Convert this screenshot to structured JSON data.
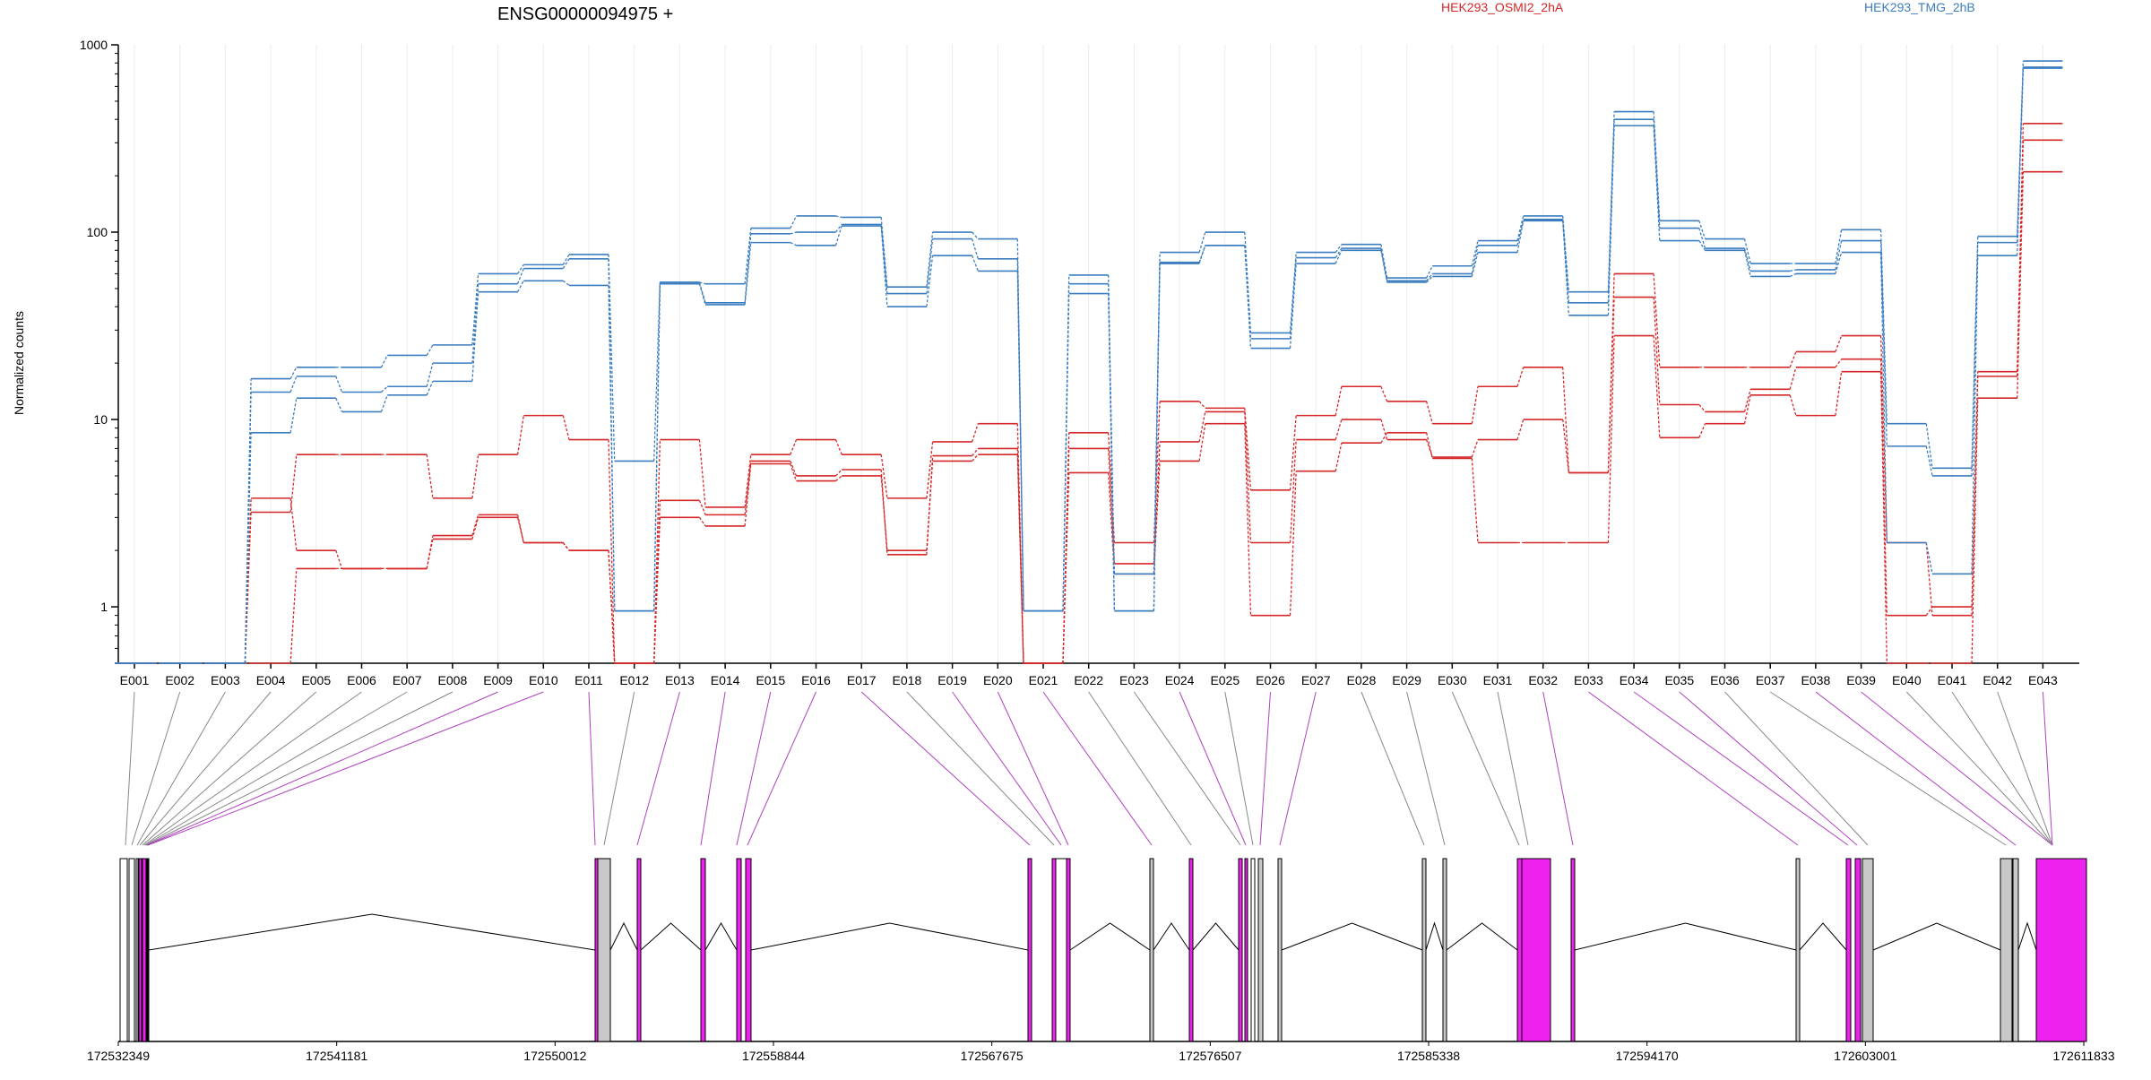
{
  "chart_data": {
    "type": "line",
    "title": "ENSG00000094975 +",
    "ylabel": "Normalized counts",
    "yscale": "log",
    "ylim": [
      0.5,
      1000
    ],
    "y_ticks": [
      "1",
      "10",
      "100",
      "1000"
    ],
    "grid": "vertical",
    "legend_placement": "top-right",
    "categories": [
      "E001",
      "E002",
      "E003",
      "E004",
      "E005",
      "E006",
      "E007",
      "E008",
      "E009",
      "E010",
      "E011",
      "E012",
      "E013",
      "E014",
      "E015",
      "E016",
      "E017",
      "E018",
      "E019",
      "E020",
      "E021",
      "E022",
      "E023",
      "E024",
      "E025",
      "E026",
      "E027",
      "E028",
      "E029",
      "E030",
      "E031",
      "E032",
      "E033",
      "E034",
      "E035",
      "E036",
      "E037",
      "E038",
      "E039",
      "E040",
      "E041",
      "E042",
      "E043"
    ],
    "series": [
      {
        "name": "HEK293_OSMI2_2hA",
        "group": "OSMI2",
        "color": "#d62728",
        "values": [
          0.5,
          0.5,
          0.5,
          0.5,
          1.6,
          1.6,
          1.6,
          2.3,
          3.0,
          2.2,
          2.0,
          0.5,
          3.0,
          2.7,
          5.8,
          4.7,
          5.0,
          2.0,
          6.0,
          6.5,
          0.5,
          5.2,
          1.5,
          6.0,
          9.5,
          0.9,
          5.3,
          7.5,
          8.5,
          6.2,
          2.2,
          2.2,
          2.2,
          28,
          8,
          9.5,
          13.5,
          10.5,
          18,
          0.5,
          0.5,
          13,
          210
        ]
      },
      {
        "name": "",
        "group": "OSMI2",
        "color": "#d62728",
        "values": [
          0.5,
          0.5,
          0.5,
          3.8,
          2.0,
          1.6,
          1.6,
          2.4,
          3.1,
          2.2,
          2.0,
          0.5,
          3.7,
          3.1,
          6.0,
          5.0,
          5.4,
          1.9,
          6.4,
          7.0,
          0.5,
          7.0,
          1.7,
          7.6,
          11,
          2.2,
          7.8,
          10,
          7.8,
          6.3,
          7.8,
          10,
          5.2,
          45,
          12,
          11,
          14.5,
          19,
          21,
          0.9,
          1.0,
          17,
          310
        ]
      },
      {
        "name": "",
        "group": "OSMI2",
        "color": "#d62728",
        "values": [
          0.5,
          0.5,
          0.5,
          3.2,
          6.5,
          6.5,
          6.5,
          3.8,
          6.5,
          10.5,
          7.8,
          0.5,
          7.8,
          3.4,
          6.5,
          7.8,
          6.5,
          3.8,
          7.6,
          9.5,
          0.5,
          8.5,
          2.2,
          12.5,
          11.5,
          4.2,
          10.5,
          15,
          12.5,
          9.5,
          15,
          19,
          5.2,
          60,
          19,
          19,
          19,
          23,
          28,
          2.2,
          0.9,
          18,
          380
        ]
      },
      {
        "name": "HEK293_TMG_2hB",
        "group": "TMG",
        "color": "#3b7dbf",
        "values": [
          0.5,
          0.5,
          0.5,
          8.5,
          13,
          11,
          13.5,
          16,
          48,
          55,
          52,
          0.95,
          53,
          41,
          88,
          85,
          108,
          40,
          75,
          62,
          0.95,
          47,
          0.95,
          68,
          85,
          24,
          68,
          80,
          54,
          58,
          78,
          115,
          36,
          370,
          90,
          80,
          58,
          60,
          78,
          2.2,
          1.5,
          75,
          750
        ]
      },
      {
        "name": "",
        "group": "TMG",
        "color": "#3b7dbf",
        "values": [
          0.5,
          0.5,
          0.5,
          14,
          17,
          14,
          15,
          20,
          53,
          64,
          72,
          0.95,
          54,
          42,
          98,
          100,
          110,
          47,
          92,
          72,
          0.95,
          53,
          1.5,
          69,
          85,
          27,
          73,
          82,
          55,
          60,
          85,
          117,
          42,
          400,
          105,
          82,
          62,
          63,
          90,
          7.2,
          5.0,
          88,
          760
        ]
      },
      {
        "name": "",
        "group": "TMG",
        "color": "#3b7dbf",
        "values": [
          0.5,
          0.5,
          0.5,
          16.5,
          19,
          19,
          22,
          25,
          60,
          67,
          76,
          6,
          54,
          53,
          105,
          122,
          120,
          51,
          100,
          92,
          0.95,
          59,
          0.95,
          78,
          100,
          29,
          78,
          86,
          57,
          66,
          90,
          122,
          48,
          440,
          115,
          92,
          68,
          68,
          103,
          9.5,
          5.5,
          95,
          820
        ]
      }
    ],
    "gene_model": {
      "x_ticks": [
        "172532349",
        "172541181",
        "172550012",
        "172558844",
        "172567675",
        "172576507",
        "172585338",
        "172594170",
        "172603001",
        "172611833"
      ]
    }
  }
}
